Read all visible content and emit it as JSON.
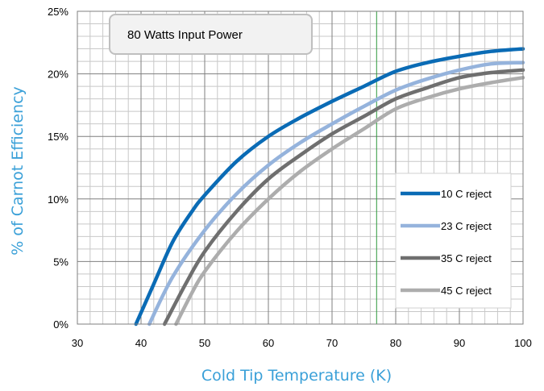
{
  "chart_data": {
    "type": "line",
    "title": "",
    "annotation": "80 Watts Input Power",
    "xlabel": "Cold Tip Temperature (K)",
    "ylabel": "% of Carnot Efficiency",
    "xlim": [
      30,
      100
    ],
    "ylim": [
      0,
      25
    ],
    "x_ticks": [
      "30",
      "40",
      "50",
      "60",
      "70",
      "80",
      "90",
      "100"
    ],
    "y_ticks": [
      "0%",
      "5%",
      "10%",
      "15%",
      "20%",
      "25%"
    ],
    "grid": true,
    "legend_position": "bottom-right",
    "marker_line_x": 77,
    "colors": {
      "axis_title": "#3aa0d8",
      "major_grid": "#7f7f7f",
      "minor_grid": "#c8c8c8",
      "marker_line": "#2e9a3c"
    },
    "series": [
      {
        "name": "10 C reject",
        "color": "#0a6bb5",
        "points": [
          [
            39.2,
            0
          ],
          [
            42,
            3.2
          ],
          [
            45,
            6.6
          ],
          [
            48,
            9.0
          ],
          [
            50,
            10.3
          ],
          [
            55,
            13.0
          ],
          [
            60,
            15.0
          ],
          [
            65,
            16.5
          ],
          [
            70,
            17.8
          ],
          [
            75,
            19.0
          ],
          [
            80,
            20.2
          ],
          [
            85,
            20.9
          ],
          [
            90,
            21.4
          ],
          [
            95,
            21.8
          ],
          [
            100,
            22.0
          ]
        ]
      },
      {
        "name": "23 C reject",
        "color": "#95b3dc",
        "points": [
          [
            41.3,
            0
          ],
          [
            45,
            3.8
          ],
          [
            50,
            7.5
          ],
          [
            55,
            10.4
          ],
          [
            60,
            12.7
          ],
          [
            65,
            14.5
          ],
          [
            70,
            16.0
          ],
          [
            75,
            17.4
          ],
          [
            80,
            18.7
          ],
          [
            85,
            19.6
          ],
          [
            90,
            20.3
          ],
          [
            95,
            20.8
          ],
          [
            100,
            20.9
          ]
        ]
      },
      {
        "name": "35 C reject",
        "color": "#6f6f6f",
        "points": [
          [
            43.7,
            0
          ],
          [
            47,
            3.2
          ],
          [
            50,
            5.8
          ],
          [
            55,
            9.0
          ],
          [
            60,
            11.6
          ],
          [
            65,
            13.5
          ],
          [
            70,
            15.2
          ],
          [
            75,
            16.6
          ],
          [
            80,
            18.0
          ],
          [
            85,
            18.9
          ],
          [
            90,
            19.7
          ],
          [
            95,
            20.1
          ],
          [
            100,
            20.3
          ]
        ]
      },
      {
        "name": "45 C reject",
        "color": "#adadad",
        "points": [
          [
            45.5,
            0
          ],
          [
            48,
            2.5
          ],
          [
            50,
            4.2
          ],
          [
            55,
            7.4
          ],
          [
            60,
            10.0
          ],
          [
            65,
            12.2
          ],
          [
            70,
            14.0
          ],
          [
            75,
            15.6
          ],
          [
            80,
            17.2
          ],
          [
            85,
            18.1
          ],
          [
            90,
            18.8
          ],
          [
            95,
            19.3
          ],
          [
            100,
            19.7
          ]
        ]
      }
    ]
  }
}
